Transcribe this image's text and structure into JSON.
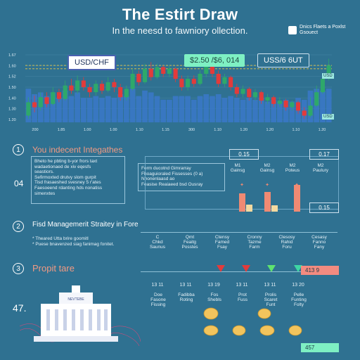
{
  "header": {
    "title": "The Estirt Draw",
    "subtitle": "In the neesd to fawniory ollection.",
    "brand": "Dnics Flaets a Poxlst Gsouect"
  },
  "pairs": {
    "left": "USD/CHF",
    "middle": "$2.50 /$6, 014",
    "right": "USS/6 6UT"
  },
  "tags": {
    "top": "USD",
    "bottom": "USD"
  },
  "chart_data": {
    "type": "candlestick",
    "y_ticks": [
      "1.67",
      "1.60",
      "1.52",
      "1.50",
      "1.40",
      "1.30",
      "1.20"
    ],
    "x_ticks": [
      "200",
      "1.85",
      "1.00",
      "1.00",
      "1.10",
      "1.15",
      "300",
      "1.10",
      "1.20",
      "1.20",
      "1.10",
      "1.20"
    ],
    "candles": [
      {
        "o": 1.22,
        "c": 1.3,
        "h": 1.33,
        "l": 1.2
      },
      {
        "o": 1.3,
        "c": 1.27,
        "h": 1.34,
        "l": 1.24
      },
      {
        "o": 1.27,
        "c": 1.33,
        "h": 1.36,
        "l": 1.25
      },
      {
        "o": 1.33,
        "c": 1.29,
        "h": 1.36,
        "l": 1.27
      },
      {
        "o": 1.29,
        "c": 1.36,
        "h": 1.39,
        "l": 1.28
      },
      {
        "o": 1.36,
        "c": 1.32,
        "h": 1.38,
        "l": 1.3
      },
      {
        "o": 1.32,
        "c": 1.4,
        "h": 1.43,
        "l": 1.31
      },
      {
        "o": 1.4,
        "c": 1.37,
        "h": 1.44,
        "l": 1.35
      },
      {
        "o": 1.37,
        "c": 1.43,
        "h": 1.46,
        "l": 1.35
      },
      {
        "o": 1.43,
        "c": 1.39,
        "h": 1.45,
        "l": 1.37
      },
      {
        "o": 1.39,
        "c": 1.36,
        "h": 1.41,
        "l": 1.33
      },
      {
        "o": 1.36,
        "c": 1.41,
        "h": 1.43,
        "l": 1.34
      },
      {
        "o": 1.41,
        "c": 1.37,
        "h": 1.43,
        "l": 1.35
      },
      {
        "o": 1.37,
        "c": 1.42,
        "h": 1.45,
        "l": 1.36
      },
      {
        "o": 1.42,
        "c": 1.39,
        "h": 1.44,
        "l": 1.36
      },
      {
        "o": 1.39,
        "c": 1.33,
        "h": 1.41,
        "l": 1.31
      },
      {
        "o": 1.33,
        "c": 1.38,
        "h": 1.4,
        "l": 1.31
      },
      {
        "o": 1.38,
        "c": 1.47,
        "h": 1.5,
        "l": 1.37
      },
      {
        "o": 1.47,
        "c": 1.42,
        "h": 1.49,
        "l": 1.4
      },
      {
        "o": 1.42,
        "c": 1.5,
        "h": 1.53,
        "l": 1.41
      },
      {
        "o": 1.5,
        "c": 1.45,
        "h": 1.54,
        "l": 1.43
      },
      {
        "o": 1.45,
        "c": 1.51,
        "h": 1.53,
        "l": 1.44
      },
      {
        "o": 1.51,
        "c": 1.47,
        "h": 1.52,
        "l": 1.45
      },
      {
        "o": 1.47,
        "c": 1.5,
        "h": 1.52,
        "l": 1.45
      },
      {
        "o": 1.5,
        "c": 1.44,
        "h": 1.51,
        "l": 1.42
      },
      {
        "o": 1.44,
        "c": 1.39,
        "h": 1.46,
        "l": 1.37
      },
      {
        "o": 1.39,
        "c": 1.44,
        "h": 1.46,
        "l": 1.37
      },
      {
        "o": 1.44,
        "c": 1.41,
        "h": 1.46,
        "l": 1.39
      },
      {
        "o": 1.41,
        "c": 1.47,
        "h": 1.49,
        "l": 1.4
      },
      {
        "o": 1.47,
        "c": 1.52,
        "h": 1.55,
        "l": 1.45
      },
      {
        "o": 1.52,
        "c": 1.47,
        "h": 1.54,
        "l": 1.45
      },
      {
        "o": 1.47,
        "c": 1.41,
        "h": 1.49,
        "l": 1.39
      },
      {
        "o": 1.41,
        "c": 1.45,
        "h": 1.47,
        "l": 1.39
      },
      {
        "o": 1.45,
        "c": 1.39,
        "h": 1.46,
        "l": 1.37
      },
      {
        "o": 1.39,
        "c": 1.35,
        "h": 1.41,
        "l": 1.33
      },
      {
        "o": 1.35,
        "c": 1.38,
        "h": 1.4,
        "l": 1.33
      },
      {
        "o": 1.38,
        "c": 1.33,
        "h": 1.39,
        "l": 1.31
      },
      {
        "o": 1.33,
        "c": 1.36,
        "h": 1.38,
        "l": 1.31
      },
      {
        "o": 1.36,
        "c": 1.31,
        "h": 1.37,
        "l": 1.29
      },
      {
        "o": 1.31,
        "c": 1.33,
        "h": 1.35,
        "l": 1.29
      },
      {
        "o": 1.33,
        "c": 1.29,
        "h": 1.34,
        "l": 1.27
      },
      {
        "o": 1.29,
        "c": 1.31,
        "h": 1.33,
        "l": 1.27
      },
      {
        "o": 1.31,
        "c": 1.27,
        "h": 1.32,
        "l": 1.25
      },
      {
        "o": 1.27,
        "c": 1.3,
        "h": 1.31,
        "l": 1.25
      },
      {
        "o": 1.3,
        "c": 1.25,
        "h": 1.31,
        "l": 1.23
      },
      {
        "o": 1.25,
        "c": 1.22,
        "h": 1.27,
        "l": 1.2
      },
      {
        "o": 1.22,
        "c": 1.28,
        "h": 1.33,
        "l": 1.21
      },
      {
        "o": 1.28,
        "c": 1.36,
        "h": 1.4,
        "l": 1.27
      },
      {
        "o": 1.36,
        "c": 1.44,
        "h": 1.47,
        "l": 1.35
      },
      {
        "o": 1.44,
        "c": 1.52,
        "h": 1.56,
        "l": 1.43
      }
    ],
    "guide_levels": [
      1.52,
      1.5
    ],
    "colors": {
      "up": "#2ea86a",
      "down": "#e23b3b",
      "volume": "#3a78c9",
      "guide": "#e8c84a"
    }
  },
  "section1": {
    "num": "1",
    "title": "You indecent Integathes",
    "side": "04",
    "notes": [
      "Bheto he pbting b-yor frors taxt",
      "wadaetionaed de xiv eqesfs",
      "seastiors.",
      "Sefirmoxted drutvy slom gurpit",
      "Tisd frasaeshed svesney 5 r'ates",
      "Faesoeend rdanting hds nonatiss",
      "simenxtes"
    ],
    "list": [
      "Ferm ducotnd Gimrarray",
      "Fhoaguioraled Fissesses (0 a)",
      "Nhonenlaasd ao",
      "Feasise Reaiaeed bsd Ousray"
    ],
    "headers": [
      "M1\nGainsg",
      "M2\nGainsg",
      "M2\nPoteus",
      "M2\nPaulury"
    ],
    "vals": {
      "a": "0.15",
      "b": "0.17",
      "c": "0.15"
    }
  },
  "section2": {
    "num": "2",
    "title": "Fisd Managemerit Straitey in Fore",
    "notes": [
      "Theared Utta brire goomitl",
      "Puese bnavenzed siag fanimag fonitet."
    ],
    "cols": [
      "C\nChkd\nSaunus",
      "Qmt\nFeaitg\nPosstes",
      "Ctensy\nFamed\nFsay",
      "Cronny\nTazme\nFarm",
      "Clesosy\nRahid\nForu",
      "Cesasy\nFanno\nFany"
    ]
  },
  "section3": {
    "num": "3",
    "title": "Propit tare",
    "side": "47.",
    "building": "NEVTEBE",
    "values": [
      "13 11",
      "13 11",
      "13 19",
      "13 11",
      "13 11",
      "13 20"
    ],
    "labels": [
      "Doe\nFasone\nFissing",
      "Fadibba\nRoting",
      "Fos\nShebls",
      "Prot\nFuss",
      "Prolis\nScaret\nFunt",
      "Pelle\nFunting\nFolty"
    ],
    "chip_red": "413 9",
    "chip_green": "457"
  }
}
